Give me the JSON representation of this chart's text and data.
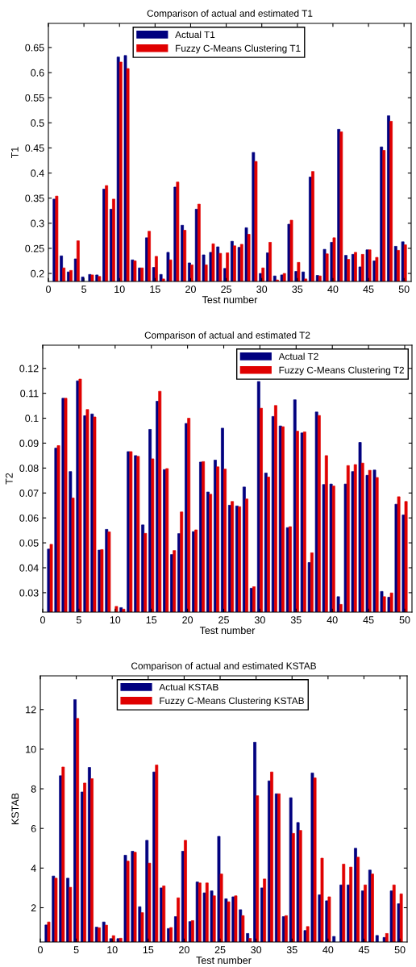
{
  "chart_data": [
    {
      "type": "bar",
      "title": "Comparison of actual and estimated T1",
      "xlabel": "Test number",
      "ylabel": "T1",
      "x": [
        1,
        2,
        3,
        4,
        5,
        6,
        7,
        8,
        9,
        10,
        11,
        12,
        13,
        14,
        15,
        16,
        17,
        18,
        19,
        20,
        21,
        22,
        23,
        24,
        25,
        26,
        27,
        28,
        29,
        30,
        31,
        32,
        33,
        34,
        35,
        36,
        37,
        38,
        39,
        40,
        41,
        42,
        43,
        44,
        45,
        46,
        47,
        48,
        49,
        50
      ],
      "xlim": [
        0,
        51
      ],
      "xticks": [
        0,
        5,
        10,
        15,
        20,
        25,
        30,
        35,
        40,
        45,
        50
      ],
      "ylim": [
        0.184,
        0.698
      ],
      "yticks": [
        0.2,
        0.25,
        0.3,
        0.35,
        0.4,
        0.45,
        0.5,
        0.55,
        0.6,
        0.65
      ],
      "legend": "top",
      "grid": false,
      "series": [
        {
          "name": "Actual T1",
          "color": "#00007f",
          "values": [
            0.348,
            0.235,
            0.203,
            0.229,
            0.193,
            0.198,
            0.197,
            0.368,
            0.328,
            0.631,
            0.634,
            0.227,
            0.211,
            0.271,
            0.212,
            0.198,
            0.242,
            0.372,
            0.296,
            0.221,
            0.328,
            0.237,
            0.242,
            0.253,
            0.21,
            0.264,
            0.252,
            0.291,
            0.441,
            0.2,
            0.241,
            0.195,
            0.197,
            0.298,
            0.204,
            0.203,
            0.392,
            0.196,
            0.248,
            0.262,
            0.487,
            0.236,
            0.238,
            0.213,
            0.247,
            0.225,
            0.452,
            0.514,
            0.254,
            0.263
          ]
        },
        {
          "name": "Fuzzy C-Means Clustering T1",
          "color": "#e00000",
          "values": [
            0.354,
            0.211,
            0.206,
            0.265,
            null,
            0.197,
            0.194,
            0.375,
            0.348,
            0.621,
            0.608,
            0.225,
            0.211,
            0.284,
            0.234,
            0.189,
            0.227,
            0.382,
            0.286,
            0.217,
            0.338,
            0.217,
            0.259,
            0.24,
            0.241,
            0.255,
            0.258,
            0.278,
            0.423,
            0.211,
            0.262,
            0.187,
            0.2,
            0.306,
            0.222,
            0.189,
            0.403,
            0.195,
            0.239,
            0.271,
            0.482,
            0.228,
            0.242,
            0.238,
            0.247,
            0.232,
            0.445,
            0.503,
            0.246,
            0.257
          ]
        }
      ]
    },
    {
      "type": "bar",
      "title": "Comparison of actual and estimated T2",
      "xlabel": "Test number",
      "ylabel": "T2",
      "x": [
        1,
        2,
        3,
        4,
        5,
        6,
        7,
        8,
        9,
        10,
        11,
        12,
        13,
        14,
        15,
        16,
        17,
        18,
        19,
        20,
        21,
        22,
        23,
        24,
        25,
        26,
        27,
        28,
        29,
        30,
        31,
        32,
        33,
        34,
        35,
        36,
        37,
        38,
        39,
        40,
        41,
        42,
        43,
        44,
        45,
        46,
        47,
        48,
        49,
        50
      ],
      "xlim": [
        0,
        51
      ],
      "xticks": [
        0,
        5,
        10,
        15,
        20,
        25,
        30,
        35,
        40,
        45,
        50
      ],
      "ylim": [
        0.0222,
        0.1293
      ],
      "yticks": [
        0.03,
        0.04,
        0.05,
        0.06,
        0.07,
        0.08,
        0.09,
        0.1,
        0.11,
        0.12
      ],
      "legend": "top right",
      "grid": false,
      "series": [
        {
          "name": "Actual T2",
          "color": "#00007f",
          "values": [
            0.0475,
            0.088,
            0.108,
            0.0786,
            0.115,
            0.101,
            0.1017,
            0.0471,
            0.0554,
            null,
            0.024,
            0.0866,
            0.085,
            0.0572,
            0.0955,
            0.1068,
            0.0794,
            0.0453,
            0.0537,
            0.0979,
            0.0545,
            0.0824,
            0.0704,
            0.0832,
            0.096,
            0.0651,
            0.0648,
            0.0724,
            0.0318,
            0.1147,
            0.078,
            0.1007,
            0.0969,
            0.0561,
            0.1074,
            0.0941,
            0.0421,
            0.1025,
            0.0734,
            0.0736,
            0.0284,
            0.0736,
            0.0786,
            0.0903,
            0.0771,
            0.0792,
            0.0305,
            0.0282,
            0.0655,
            0.0612
          ]
        },
        {
          "name": "Fuzzy C-Means Clustering T2",
          "color": "#e00000",
          "values": [
            0.0494,
            0.089,
            0.108,
            0.068,
            0.1157,
            0.1035,
            0.1005,
            0.0473,
            0.0544,
            0.0245,
            0.0234,
            0.0866,
            0.0847,
            0.0538,
            0.0837,
            0.1108,
            0.0798,
            0.0469,
            0.0624,
            0.1,
            0.0552,
            0.0826,
            0.0695,
            0.0805,
            0.0796,
            0.0666,
            0.0645,
            0.0676,
            0.0324,
            0.104,
            0.0764,
            0.1051,
            0.0966,
            0.0565,
            0.0948,
            0.0945,
            0.046,
            0.1011,
            0.085,
            0.0728,
            0.0253,
            0.081,
            0.0814,
            0.082,
            0.0791,
            0.0762,
            0.0284,
            0.0299,
            0.0685,
            0.0666
          ]
        }
      ]
    },
    {
      "type": "bar",
      "title": "Comparison of actual and estimated KSTAB",
      "xlabel": "Test number",
      "ylabel": "KSTAB",
      "x": [
        1,
        2,
        3,
        4,
        5,
        6,
        7,
        8,
        9,
        10,
        11,
        12,
        13,
        14,
        15,
        16,
        17,
        18,
        19,
        20,
        21,
        22,
        23,
        24,
        25,
        26,
        27,
        28,
        29,
        30,
        31,
        32,
        33,
        34,
        35,
        36,
        37,
        38,
        39,
        40,
        41,
        42,
        43,
        44,
        45,
        46,
        47,
        48,
        49,
        50
      ],
      "xlim": [
        0,
        51
      ],
      "xticks": [
        0,
        5,
        10,
        15,
        20,
        25,
        30,
        35,
        40,
        45,
        50
      ],
      "ylim": [
        0.27,
        13.7
      ],
      "yticks": [
        2,
        4,
        6,
        8,
        10,
        12
      ],
      "legend": "top",
      "grid": false,
      "series": [
        {
          "name": "Actual KSTAB",
          "color": "#00007f",
          "values": [
            1.13,
            3.6,
            8.66,
            3.49,
            12.5,
            7.84,
            9.08,
            1.02,
            1.28,
            0.44,
            0.44,
            4.65,
            4.85,
            2.05,
            5.4,
            8.85,
            3.0,
            0.95,
            1.55,
            4.85,
            1.3,
            3.3,
            2.75,
            2.85,
            5.6,
            2.45,
            2.55,
            1.9,
            0.7,
            10.35,
            3.0,
            8.4,
            7.75,
            1.55,
            7.55,
            6.3,
            0.85,
            8.8,
            2.65,
            2.35,
            0.55,
            3.15,
            3.15,
            5.0,
            2.85,
            3.9,
            0.6,
            0.5,
            2.85,
            2.2
          ]
        },
        {
          "name": "Fuzzy C-Means Clustering KSTAB",
          "color": "#e00000",
          "values": [
            1.28,
            3.49,
            9.1,
            3.03,
            11.55,
            8.29,
            8.51,
            0.99,
            1.12,
            0.59,
            0.46,
            4.35,
            4.8,
            1.75,
            4.25,
            9.2,
            3.1,
            1.0,
            2.5,
            5.4,
            1.35,
            3.25,
            3.25,
            2.6,
            3.7,
            2.3,
            2.6,
            1.6,
            0.45,
            7.65,
            3.45,
            8.85,
            7.75,
            1.6,
            5.75,
            5.9,
            1.05,
            8.55,
            4.5,
            2.55,
            null,
            4.2,
            4.05,
            4.55,
            3.15,
            3.7,
            null,
            0.7,
            3.15,
            2.7
          ]
        }
      ]
    }
  ]
}
